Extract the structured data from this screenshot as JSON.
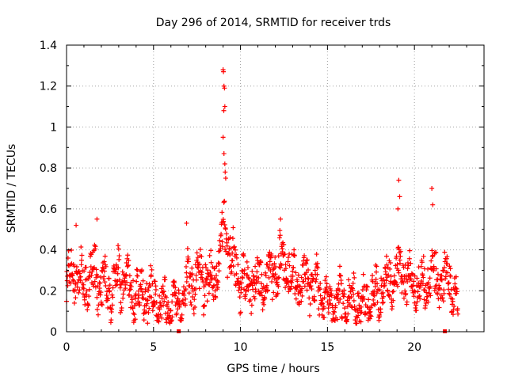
{
  "chart_data": {
    "type": "scatter",
    "title": "Day 296 of 2014, SRMTID for receiver trds",
    "xlabel": "GPS time / hours",
    "ylabel": "SRMTID / TECUs",
    "xlim": [
      0,
      24
    ],
    "ylim": [
      0,
      1.4
    ],
    "xticks": [
      0,
      5,
      10,
      15,
      20
    ],
    "yticks": [
      0,
      0.2,
      0.4,
      0.6,
      0.8,
      1,
      1.2,
      1.4
    ],
    "ytick_labels": [
      "0",
      "0.2",
      "0.4",
      "0.6",
      "0.8",
      "1",
      "1.2",
      "1.4"
    ],
    "grid": true,
    "marker": "+",
    "color": "#ff0000",
    "gap_markers_x": [
      6.45,
      21.75
    ],
    "series": [
      {
        "name": "SRMTID",
        "x_start": 0.0,
        "x_end": 22.5,
        "points": 1300,
        "profile": [
          [
            0.0,
            0.22
          ],
          [
            0.5,
            0.32
          ],
          [
            1.0,
            0.24
          ],
          [
            1.5,
            0.28
          ],
          [
            2.0,
            0.25
          ],
          [
            2.5,
            0.2
          ],
          [
            3.0,
            0.26
          ],
          [
            3.5,
            0.22
          ],
          [
            4.0,
            0.2
          ],
          [
            4.5,
            0.19
          ],
          [
            5.0,
            0.15
          ],
          [
            5.5,
            0.13
          ],
          [
            6.0,
            0.11
          ],
          [
            6.5,
            0.14
          ],
          [
            7.0,
            0.24
          ],
          [
            7.5,
            0.27
          ],
          [
            8.0,
            0.26
          ],
          [
            8.5,
            0.24
          ],
          [
            9.0,
            0.5
          ],
          [
            9.3,
            0.45
          ],
          [
            9.6,
            0.32
          ],
          [
            10.0,
            0.25
          ],
          [
            10.5,
            0.22
          ],
          [
            11.0,
            0.24
          ],
          [
            11.5,
            0.26
          ],
          [
            12.0,
            0.3
          ],
          [
            12.5,
            0.33
          ],
          [
            13.0,
            0.26
          ],
          [
            13.5,
            0.22
          ],
          [
            14.0,
            0.26
          ],
          [
            14.5,
            0.21
          ],
          [
            15.0,
            0.15
          ],
          [
            15.5,
            0.14
          ],
          [
            16.0,
            0.15
          ],
          [
            16.5,
            0.16
          ],
          [
            17.0,
            0.14
          ],
          [
            17.5,
            0.16
          ],
          [
            18.0,
            0.19
          ],
          [
            18.5,
            0.24
          ],
          [
            19.0,
            0.3
          ],
          [
            19.5,
            0.27
          ],
          [
            20.0,
            0.24
          ],
          [
            20.5,
            0.22
          ],
          [
            21.0,
            0.3
          ],
          [
            21.5,
            0.22
          ],
          [
            22.0,
            0.28
          ],
          [
            22.5,
            0.14
          ]
        ],
        "spikes": [
          [
            9.0,
            1.28
          ],
          [
            9.02,
            1.27
          ],
          [
            9.05,
            1.2
          ],
          [
            9.08,
            1.19
          ],
          [
            9.1,
            1.1
          ],
          [
            9.04,
            1.08
          ],
          [
            9.0,
            0.95
          ],
          [
            9.05,
            0.87
          ],
          [
            9.1,
            0.82
          ],
          [
            9.12,
            0.78
          ],
          [
            9.15,
            0.75
          ],
          [
            19.1,
            0.74
          ],
          [
            19.15,
            0.66
          ],
          [
            19.05,
            0.6
          ],
          [
            21.0,
            0.7
          ],
          [
            21.05,
            0.62
          ],
          [
            0.55,
            0.52
          ],
          [
            1.75,
            0.55
          ],
          [
            6.9,
            0.53
          ],
          [
            12.3,
            0.55
          ]
        ]
      }
    ]
  }
}
